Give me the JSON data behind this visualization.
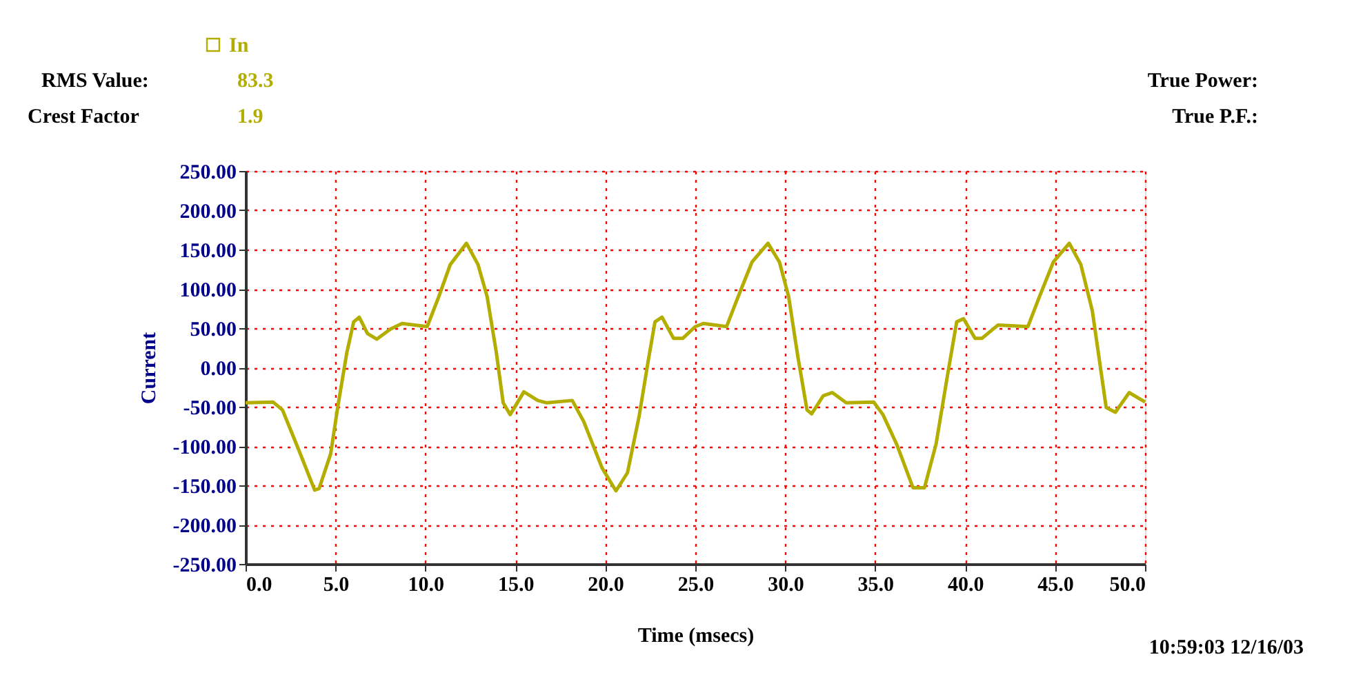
{
  "chart_data": {
    "type": "line",
    "xlabel": "Time (msecs)",
    "ylabel": "Current",
    "xlim": [
      0,
      50
    ],
    "ylim": [
      -250,
      250
    ],
    "xticks": [
      {
        "value": 0,
        "label": "0.0"
      },
      {
        "value": 5,
        "label": "5.0"
      },
      {
        "value": 10,
        "label": "10.0"
      },
      {
        "value": 15,
        "label": "15.0"
      },
      {
        "value": 20,
        "label": "20.0"
      },
      {
        "value": 25,
        "label": "25.0"
      },
      {
        "value": 30,
        "label": "30.0"
      },
      {
        "value": 35,
        "label": "35.0"
      },
      {
        "value": 40,
        "label": "40.0"
      },
      {
        "value": 45,
        "label": "45.0"
      },
      {
        "value": 50,
        "label": "50.0"
      }
    ],
    "yticks": [
      {
        "value": -250,
        "label": "-250.00"
      },
      {
        "value": -200,
        "label": "-200.00"
      },
      {
        "value": -150,
        "label": "-150.00"
      },
      {
        "value": -100,
        "label": "-100.00"
      },
      {
        "value": -50,
        "label": "-50.00"
      },
      {
        "value": 0,
        "label": "0.00"
      },
      {
        "value": 50,
        "label": "50.00"
      },
      {
        "value": 100,
        "label": "100.00"
      },
      {
        "value": 150,
        "label": "150.00"
      },
      {
        "value": 200,
        "label": "200.00"
      },
      {
        "value": 250,
        "label": "250.00"
      }
    ],
    "grid": true,
    "legend": "top left",
    "marker": "none",
    "line_style": "solid",
    "series": [
      {
        "name": "In",
        "color": "#b3ad00",
        "x": [
          0,
          1.53,
          2.05,
          2.94,
          3.84,
          4.09,
          4.73,
          5.12,
          5.63,
          6.01,
          6.32,
          6.78,
          7.29,
          8.06,
          8.7,
          10.1,
          10.74,
          11.38,
          12.28,
          12.92,
          13.43,
          13.94,
          14.32,
          14.71,
          15.47,
          16.24,
          16.75,
          18.16,
          18.8,
          19.82,
          20.59,
          21.23,
          21.87,
          22.38,
          22.76,
          23.15,
          23.79,
          24.3,
          25.0,
          25.46,
          26.74,
          27.38,
          28.15,
          29.04,
          29.68,
          30.19,
          30.7,
          31.21,
          31.47,
          32.11,
          32.62,
          33.39,
          34.92,
          35.43,
          36.2,
          37.1,
          37.74,
          38.38,
          39.02,
          39.53,
          39.91,
          40.55,
          40.93,
          41.83,
          43.49,
          44.13,
          44.9,
          45.79,
          46.43,
          47.07,
          47.84,
          48.35,
          49.12,
          50.0
        ],
        "values": [
          -45,
          -44,
          -54,
          -104,
          -156,
          -154,
          -110,
          -51,
          19,
          58,
          64,
          43,
          36,
          49,
          56,
          52,
          90,
          131,
          158,
          131,
          90,
          19,
          -45,
          -60,
          -31,
          -42,
          -45,
          -42,
          -69,
          -128,
          -157,
          -134,
          -63,
          8,
          58,
          64,
          37,
          37,
          52,
          56,
          52,
          90,
          134,
          158,
          134,
          90,
          14,
          -54,
          -59,
          -36,
          -32,
          -45,
          -44,
          -60,
          -98,
          -153,
          -153,
          -98,
          -10,
          58,
          62,
          37,
          37,
          54,
          52,
          90,
          134,
          158,
          131,
          72,
          -51,
          -57,
          -32,
          -44
        ]
      }
    ],
    "annotations": [
      "RMS Value:",
      "83.3",
      "Crest Factor",
      "1.9",
      "True Power:",
      "True P.F.:",
      "10:59:03 12/16/03"
    ]
  }
}
